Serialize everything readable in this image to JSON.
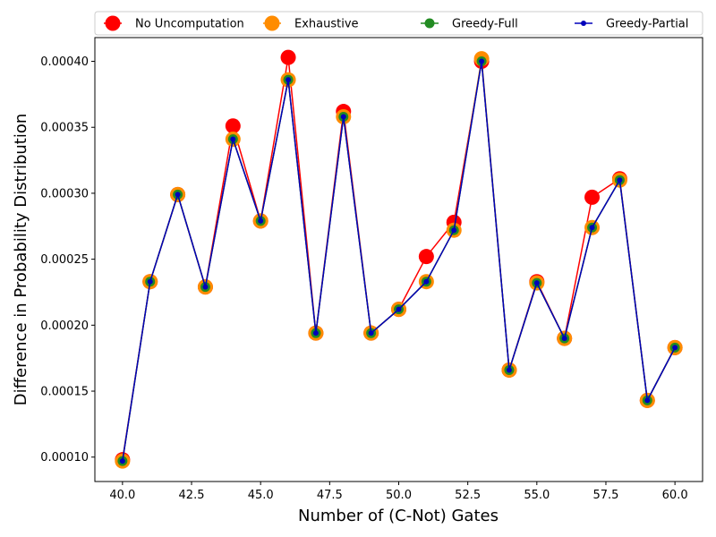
{
  "chart_data": {
    "type": "line",
    "xlabel": "Number of (C-Not) Gates",
    "ylabel": "Difference in Probability Distribution",
    "xlim": [
      39.0,
      61.0
    ],
    "ylim": [
      8.15e-05,
      0.000418
    ],
    "xticks": [
      40.0,
      42.5,
      45.0,
      47.5,
      50.0,
      52.5,
      55.0,
      57.5,
      60.0
    ],
    "xtick_labels": [
      "40.0",
      "42.5",
      "45.0",
      "47.5",
      "50.0",
      "52.5",
      "55.0",
      "57.5",
      "60.0"
    ],
    "yticks": [
      0.0001,
      0.00015,
      0.0002,
      0.00025,
      0.0003,
      0.00035,
      0.0004
    ],
    "ytick_labels": [
      "0.00010",
      "0.00015",
      "0.00020",
      "0.00025",
      "0.00030",
      "0.00035",
      "0.00040"
    ],
    "grid": false,
    "legend_position": "top (above plot), single row",
    "x": [
      40,
      41,
      42,
      43,
      44,
      45,
      46,
      47,
      48,
      49,
      50,
      51,
      52,
      53,
      54,
      55,
      56,
      57,
      58,
      59,
      60
    ],
    "series": [
      {
        "name": "No Uncomputation",
        "color": "#ff0000",
        "marker_size": "large",
        "values": [
          9.8e-05,
          0.000233,
          0.000299,
          0.000229,
          0.000351,
          0.000279,
          0.000403,
          0.000194,
          0.000362,
          0.000194,
          0.000212,
          0.000252,
          0.000278,
          0.0004,
          0.000166,
          0.000233,
          0.00019,
          0.000297,
          0.000311,
          0.000143,
          0.000183
        ]
      },
      {
        "name": "Exhaustive",
        "color": "#ff8c00",
        "marker_size": "large",
        "values": [
          9.7e-05,
          0.000233,
          0.000299,
          0.000229,
          0.000341,
          0.000279,
          0.000386,
          0.000194,
          0.000358,
          0.000194,
          0.000212,
          0.000233,
          0.000272,
          0.000402,
          0.000166,
          0.000232,
          0.00019,
          0.000274,
          0.00031,
          0.000143,
          0.000183
        ]
      },
      {
        "name": "Greedy-Full",
        "color": "#228b22",
        "marker_size": "medium",
        "values": [
          9.7e-05,
          0.000233,
          0.000299,
          0.000229,
          0.000341,
          0.000279,
          0.000386,
          0.000194,
          0.000358,
          0.000194,
          0.000212,
          0.000233,
          0.000272,
          0.0004,
          0.000166,
          0.000232,
          0.00019,
          0.000274,
          0.00031,
          0.000143,
          0.000183
        ]
      },
      {
        "name": "Greedy-Partial",
        "color": "#0000bb",
        "marker_size": "small",
        "values": [
          9.7e-05,
          0.000233,
          0.000299,
          0.000229,
          0.000341,
          0.000279,
          0.000386,
          0.000194,
          0.000358,
          0.000194,
          0.000212,
          0.000233,
          0.000272,
          0.0004,
          0.000166,
          0.000232,
          0.00019,
          0.000274,
          0.00031,
          0.000143,
          0.000183
        ]
      }
    ]
  }
}
